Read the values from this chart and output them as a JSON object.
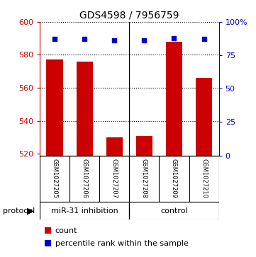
{
  "title": "GDS4598 / 7956759",
  "samples": [
    "GSM1027205",
    "GSM1027206",
    "GSM1027207",
    "GSM1027208",
    "GSM1027209",
    "GSM1027210"
  ],
  "counts": [
    577,
    576,
    530,
    531,
    588,
    566
  ],
  "percentile_ranks": [
    87,
    87,
    86,
    86,
    88,
    87
  ],
  "ylim_left": [
    519,
    600
  ],
  "ylim_right": [
    0,
    100
  ],
  "yticks_left": [
    520,
    540,
    560,
    580,
    600
  ],
  "yticks_right": [
    0,
    25,
    50,
    75,
    100
  ],
  "ytick_labels_right": [
    "0",
    "25",
    "50",
    "75",
    "100%"
  ],
  "bar_color": "#cc0000",
  "dot_color": "#0000cc",
  "group_labels": [
    "miR-31 inhibition",
    "control"
  ],
  "group_color": "#66ee66",
  "protocol_label": "protocol",
  "legend_count_label": "count",
  "legend_pct_label": "percentile rank within the sample",
  "axis_color_left": "#cc0000",
  "axis_color_right": "#0000cc",
  "bar_bottom": 519,
  "bar_width": 0.55,
  "title_fontsize": 10,
  "tick_fontsize": 8,
  "sample_fontsize": 6,
  "group_fontsize": 8,
  "legend_fontsize": 8
}
